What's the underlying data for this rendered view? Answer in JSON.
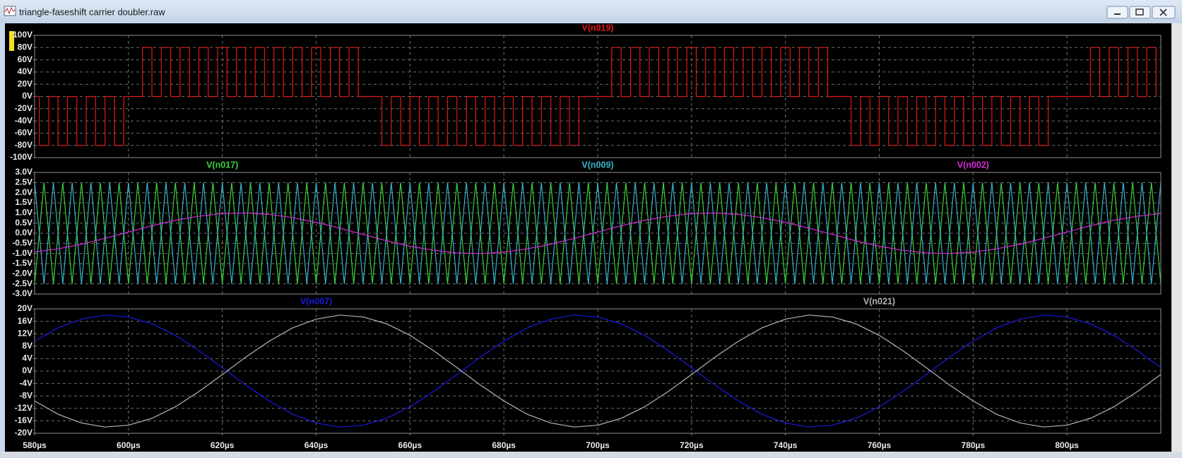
{
  "window": {
    "title": "triangle-faseshift carrier doubler.raw"
  },
  "chart_data": [
    {
      "type": "line",
      "drawstyle": "steps-post",
      "grid": true,
      "xlim": [
        580,
        820
      ],
      "ylim": [
        -100,
        100
      ],
      "yticks": [
        {
          "value": -100,
          "label": "-100V"
        },
        {
          "value": -80,
          "label": "-80V"
        },
        {
          "value": -60,
          "label": "-60V"
        },
        {
          "value": -40,
          "label": "-40V"
        },
        {
          "value": -20,
          "label": "-20V"
        },
        {
          "value": 0,
          "label": "0V"
        },
        {
          "value": 20,
          "label": "20V"
        },
        {
          "value": 40,
          "label": "40V"
        },
        {
          "value": 60,
          "label": "60V"
        },
        {
          "value": 80,
          "label": "80V"
        },
        {
          "value": 100,
          "label": "100V"
        }
      ],
      "x": [
        580,
        581,
        583,
        585,
        587,
        589,
        591,
        593,
        595,
        597,
        599,
        603,
        605,
        607,
        609,
        611,
        613,
        615,
        617,
        619,
        621,
        623,
        625,
        627,
        629,
        631,
        633,
        635,
        637,
        639,
        641,
        643,
        645,
        647,
        649,
        654,
        656,
        658,
        660,
        662,
        664,
        666,
        668,
        670,
        672,
        674,
        676,
        678,
        680,
        682,
        684,
        686,
        688,
        690,
        692,
        694,
        696,
        703,
        705,
        707,
        709,
        711,
        713,
        715,
        717,
        719,
        721,
        723,
        725,
        727,
        729,
        731,
        733,
        735,
        737,
        739,
        741,
        743,
        745,
        747,
        749,
        754,
        756,
        758,
        760,
        762,
        764,
        766,
        768,
        770,
        772,
        774,
        776,
        778,
        780,
        782,
        784,
        786,
        788,
        790,
        792,
        794,
        796,
        805,
        807,
        809,
        811,
        813,
        815,
        817,
        819
      ],
      "series": [
        {
          "name": "V(n019)",
          "color": "#e01818",
          "values": [
            0,
            -80,
            0,
            -80,
            0,
            -80,
            0,
            -80,
            0,
            -80,
            0,
            80,
            0,
            80,
            0,
            80,
            0,
            80,
            0,
            80,
            0,
            80,
            0,
            80,
            0,
            80,
            0,
            80,
            0,
            80,
            0,
            80,
            0,
            80,
            0,
            -80,
            0,
            -80,
            0,
            -80,
            0,
            -80,
            0,
            -80,
            0,
            -80,
            0,
            -80,
            0,
            -80,
            0,
            -80,
            0,
            -80,
            0,
            -80,
            0,
            80,
            0,
            80,
            0,
            80,
            0,
            80,
            0,
            80,
            0,
            80,
            0,
            80,
            0,
            80,
            0,
            80,
            0,
            80,
            0,
            80,
            0,
            80,
            0,
            -80,
            0,
            -80,
            0,
            -80,
            0,
            -80,
            0,
            -80,
            0,
            -80,
            0,
            -80,
            0,
            -80,
            0,
            -80,
            0,
            -80,
            0,
            -80,
            0,
            80,
            0,
            80,
            0,
            80,
            0,
            80,
            0
          ]
        }
      ]
    },
    {
      "type": "line",
      "grid": true,
      "xlim": [
        580,
        820
      ],
      "ylim": [
        -3,
        3
      ],
      "yticks": [
        {
          "value": -3,
          "label": "-3.0V"
        },
        {
          "value": -2.5,
          "label": "-2.5V"
        },
        {
          "value": -2,
          "label": "-2.0V"
        },
        {
          "value": -1.5,
          "label": "-1.5V"
        },
        {
          "value": -1,
          "label": "-1.0V"
        },
        {
          "value": -0.5,
          "label": "-0.5V"
        },
        {
          "value": 0,
          "label": "0.0V"
        },
        {
          "value": 0.5,
          "label": "0.5V"
        },
        {
          "value": 1,
          "label": "1.0V"
        },
        {
          "value": 1.5,
          "label": "1.5V"
        },
        {
          "value": 2,
          "label": "2.0V"
        },
        {
          "value": 2.5,
          "label": "2.5V"
        },
        {
          "value": 3,
          "label": "3.0V"
        }
      ],
      "x": [
        580,
        582,
        584,
        586,
        588,
        590,
        592,
        594,
        596,
        598,
        600,
        602,
        604,
        606,
        608,
        610,
        612,
        614,
        616,
        618,
        620,
        622,
        624,
        626,
        628,
        630,
        632,
        634,
        636,
        638,
        640,
        642,
        644,
        646,
        648,
        650,
        652,
        654,
        656,
        658,
        660,
        662,
        664,
        666,
        668,
        670,
        672,
        674,
        676,
        678,
        680,
        682,
        684,
        686,
        688,
        690,
        692,
        694,
        696,
        698,
        700,
        702,
        704,
        706,
        708,
        710,
        712,
        714,
        716,
        718,
        720,
        722,
        724,
        726,
        728,
        730,
        732,
        734,
        736,
        738,
        740,
        742,
        744,
        746,
        748,
        750,
        752,
        754,
        756,
        758,
        760,
        762,
        764,
        766,
        768,
        770,
        772,
        774,
        776,
        778,
        780,
        782,
        784,
        786,
        788,
        790,
        792,
        794,
        796,
        798,
        800,
        802,
        804,
        806,
        808,
        810,
        812,
        814,
        816,
        818,
        820
      ],
      "series": [
        {
          "name": "V(n017)",
          "color": "#3cd23c",
          "values": [
            -2.5,
            2.5,
            -2.5,
            2.5,
            -2.5,
            2.5,
            -2.5,
            2.5,
            -2.5,
            2.5,
            -2.5,
            2.5,
            -2.5,
            2.5,
            -2.5,
            2.5,
            -2.5,
            2.5,
            -2.5,
            2.5,
            -2.5,
            2.5,
            -2.5,
            2.5,
            -2.5,
            2.5,
            -2.5,
            2.5,
            -2.5,
            2.5,
            -2.5,
            2.5,
            -2.5,
            2.5,
            -2.5,
            2.5,
            -2.5,
            2.5,
            -2.5,
            2.5,
            -2.5,
            2.5,
            -2.5,
            2.5,
            -2.5,
            2.5,
            -2.5,
            2.5,
            -2.5,
            2.5,
            -2.5,
            2.5,
            -2.5,
            2.5,
            -2.5,
            2.5,
            -2.5,
            2.5,
            -2.5,
            2.5,
            -2.5,
            2.5,
            -2.5,
            2.5,
            -2.5,
            2.5,
            -2.5,
            2.5,
            -2.5,
            2.5,
            -2.5,
            2.5,
            -2.5,
            2.5,
            -2.5,
            2.5,
            -2.5,
            2.5,
            -2.5,
            2.5,
            -2.5,
            2.5,
            -2.5,
            2.5,
            -2.5,
            2.5,
            -2.5,
            2.5,
            -2.5,
            2.5,
            -2.5,
            2.5,
            -2.5,
            2.5,
            -2.5,
            2.5,
            -2.5,
            2.5,
            -2.5,
            2.5,
            -2.5,
            2.5,
            -2.5,
            2.5,
            -2.5,
            2.5,
            -2.5,
            2.5,
            -2.5,
            2.5,
            -2.5,
            2.5,
            -2.5,
            2.5,
            -2.5,
            2.5,
            -2.5,
            2.5,
            -2.5,
            2.5,
            -2.5
          ]
        },
        {
          "name": "V(n009)",
          "color": "#38b4c8",
          "values": [
            2.5,
            -2.5,
            2.5,
            -2.5,
            2.5,
            -2.5,
            2.5,
            -2.5,
            2.5,
            -2.5,
            2.5,
            -2.5,
            2.5,
            -2.5,
            2.5,
            -2.5,
            2.5,
            -2.5,
            2.5,
            -2.5,
            2.5,
            -2.5,
            2.5,
            -2.5,
            2.5,
            -2.5,
            2.5,
            -2.5,
            2.5,
            -2.5,
            2.5,
            -2.5,
            2.5,
            -2.5,
            2.5,
            -2.5,
            2.5,
            -2.5,
            2.5,
            -2.5,
            2.5,
            -2.5,
            2.5,
            -2.5,
            2.5,
            -2.5,
            2.5,
            -2.5,
            2.5,
            -2.5,
            2.5,
            -2.5,
            2.5,
            -2.5,
            2.5,
            -2.5,
            2.5,
            -2.5,
            2.5,
            -2.5,
            2.5,
            -2.5,
            2.5,
            -2.5,
            2.5,
            -2.5,
            2.5,
            -2.5,
            2.5,
            -2.5,
            2.5,
            -2.5,
            2.5,
            -2.5,
            2.5,
            -2.5,
            2.5,
            -2.5,
            2.5,
            -2.5,
            2.5,
            -2.5,
            2.5,
            -2.5,
            2.5,
            -2.5,
            2.5,
            -2.5,
            2.5,
            -2.5,
            2.5,
            -2.5,
            2.5,
            -2.5,
            2.5,
            -2.5,
            2.5,
            -2.5,
            2.5,
            -2.5,
            2.5,
            -2.5,
            2.5,
            -2.5,
            2.5,
            -2.5,
            2.5,
            -2.5,
            2.5,
            -2.5,
            2.5,
            -2.5,
            2.5,
            -2.5,
            2.5,
            -2.5,
            2.5,
            -2.5,
            2.5,
            -2.5,
            2.5
          ]
        },
        {
          "name": "V(n002)",
          "color": "#d828d8",
          "x": [
            580,
            585,
            590,
            595,
            600,
            605,
            610,
            615,
            620,
            625,
            630,
            635,
            640,
            645,
            650,
            655,
            660,
            665,
            670,
            675,
            680,
            685,
            690,
            695,
            700,
            705,
            710,
            715,
            720,
            725,
            730,
            735,
            740,
            745,
            750,
            755,
            760,
            765,
            770,
            775,
            780,
            785,
            790,
            795,
            800,
            805,
            810,
            815,
            820
          ],
          "values": [
            -0.93,
            -0.77,
            -0.54,
            -0.25,
            0.06,
            0.37,
            0.64,
            0.84,
            0.97,
            1.0,
            0.93,
            0.77,
            0.54,
            0.25,
            -0.06,
            -0.37,
            -0.64,
            -0.84,
            -0.97,
            -1.0,
            -0.93,
            -0.77,
            -0.54,
            -0.25,
            0.06,
            0.37,
            0.64,
            0.84,
            0.97,
            1.0,
            0.93,
            0.77,
            0.54,
            0.25,
            -0.06,
            -0.37,
            -0.64,
            -0.84,
            -0.97,
            -1.0,
            -0.93,
            -0.77,
            -0.54,
            -0.25,
            0.06,
            0.37,
            0.64,
            0.84,
            0.97
          ]
        }
      ]
    },
    {
      "type": "line",
      "grid": true,
      "xlim": [
        580,
        820
      ],
      "ylim": [
        -20,
        20
      ],
      "xticks": [
        {
          "value": 580,
          "label": "580µs"
        },
        {
          "value": 600,
          "label": "600µs"
        },
        {
          "value": 620,
          "label": "620µs"
        },
        {
          "value": 640,
          "label": "640µs"
        },
        {
          "value": 660,
          "label": "660µs"
        },
        {
          "value": 680,
          "label": "680µs"
        },
        {
          "value": 700,
          "label": "700µs"
        },
        {
          "value": 720,
          "label": "720µs"
        },
        {
          "value": 740,
          "label": "740µs"
        },
        {
          "value": 760,
          "label": "760µs"
        },
        {
          "value": 780,
          "label": "780µs"
        },
        {
          "value": 800,
          "label": "800µs"
        }
      ],
      "yticks": [
        {
          "value": -20,
          "label": "-20V"
        },
        {
          "value": -16,
          "label": "-16V"
        },
        {
          "value": -12,
          "label": "-12V"
        },
        {
          "value": -8,
          "label": "-8V"
        },
        {
          "value": -4,
          "label": "-4V"
        },
        {
          "value": 0,
          "label": "0V"
        },
        {
          "value": 4,
          "label": "4V"
        },
        {
          "value": 8,
          "label": "8V"
        },
        {
          "value": 12,
          "label": "12V"
        },
        {
          "value": 16,
          "label": "16V"
        },
        {
          "value": 20,
          "label": "20V"
        }
      ],
      "x": [
        580,
        585,
        590,
        595,
        600,
        605,
        610,
        615,
        620,
        625,
        630,
        635,
        640,
        645,
        650,
        655,
        660,
        665,
        670,
        675,
        680,
        685,
        690,
        695,
        700,
        705,
        710,
        715,
        720,
        725,
        730,
        735,
        740,
        745,
        750,
        755,
        760,
        765,
        770,
        775,
        780,
        785,
        790,
        795,
        800,
        805,
        810,
        815,
        820
      ],
      "series": [
        {
          "name": "V(n007)",
          "color": "#1a1ae0",
          "values": [
            9.6,
            13.9,
            16.7,
            18.0,
            17.4,
            15.2,
            11.5,
            6.6,
            1.1,
            -4.5,
            -9.6,
            -13.9,
            -16.7,
            -18.0,
            -17.4,
            -15.2,
            -11.5,
            -6.6,
            -1.1,
            4.5,
            9.6,
            13.9,
            16.7,
            18.0,
            17.4,
            15.2,
            11.5,
            6.6,
            1.1,
            -4.5,
            -9.6,
            -13.9,
            -16.7,
            -18.0,
            -17.4,
            -15.2,
            -11.5,
            -6.6,
            -1.1,
            4.5,
            9.6,
            13.9,
            16.7,
            18.0,
            17.4,
            15.2,
            11.5,
            6.6,
            1.1
          ]
        },
        {
          "name": "V(n021)",
          "color": "#b4b4b4",
          "values": [
            -9.6,
            -13.9,
            -16.7,
            -18.0,
            -17.4,
            -15.2,
            -11.5,
            -6.6,
            -1.1,
            4.5,
            9.6,
            13.9,
            16.7,
            18.0,
            17.4,
            15.2,
            11.5,
            6.6,
            1.1,
            -4.5,
            -9.6,
            -13.9,
            -16.7,
            -18.0,
            -17.4,
            -15.2,
            -11.5,
            -6.6,
            -1.1,
            4.5,
            9.6,
            13.9,
            16.7,
            18.0,
            17.4,
            15.2,
            11.5,
            6.6,
            1.1,
            -4.5,
            -9.6,
            -13.9,
            -16.7,
            -18.0,
            -17.4,
            -15.2,
            -11.5,
            -6.6,
            -1.1
          ]
        }
      ]
    }
  ]
}
